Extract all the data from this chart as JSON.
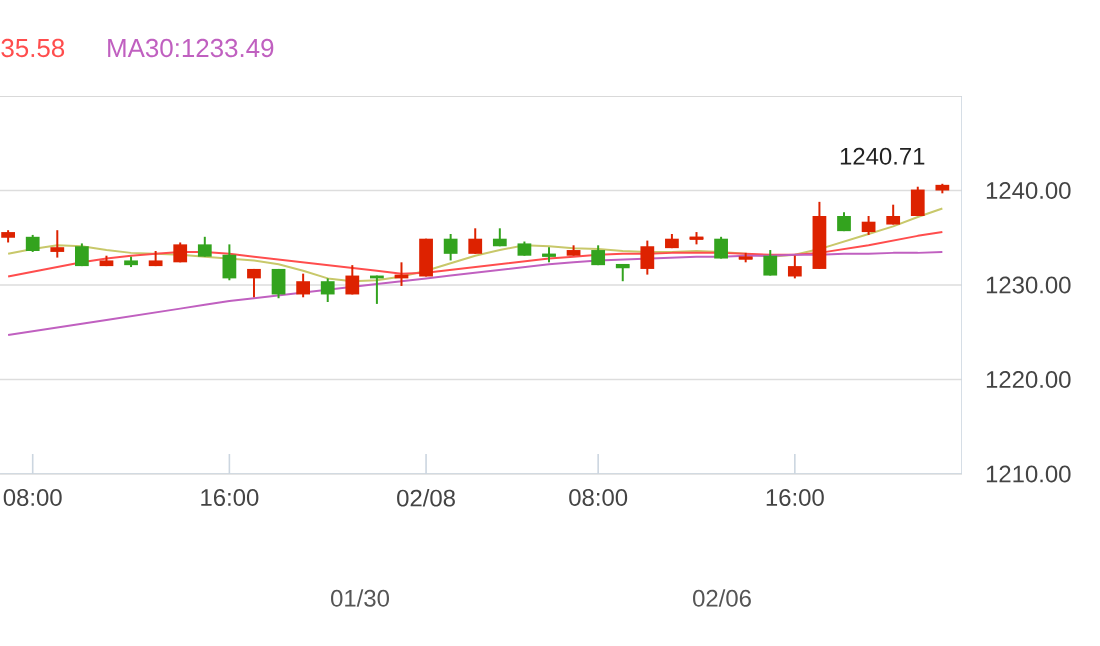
{
  "chart_data": {
    "type": "candlestick",
    "categories": [
      null,
      "08:00",
      null,
      null,
      null,
      null,
      null,
      null,
      null,
      "16:00",
      null,
      null,
      null,
      null,
      null,
      null,
      null,
      "02/08",
      null,
      null,
      null,
      null,
      null,
      null,
      "08:00",
      null,
      null,
      null,
      null,
      null,
      null,
      null,
      "16:00",
      null,
      null,
      null,
      null,
      null,
      null
    ],
    "ohlc": [
      [
        1235.0,
        1235.8,
        1234.5,
        1235.6
      ],
      [
        1235.1,
        1235.3,
        1233.5,
        1233.6
      ],
      [
        1233.5,
        1235.8,
        1232.9,
        1234.0
      ],
      [
        1234.1,
        1234.4,
        1232.0,
        1232.0
      ],
      [
        1232.0,
        1233.1,
        1232.0,
        1232.6
      ],
      [
        1232.6,
        1233.0,
        1231.9,
        1232.1
      ],
      [
        1232.0,
        1233.6,
        1232.0,
        1232.6
      ],
      [
        1232.4,
        1234.5,
        1232.4,
        1234.3
      ],
      [
        1234.3,
        1235.1,
        1233.0,
        1233.0
      ],
      [
        1233.2,
        1234.3,
        1230.5,
        1230.7
      ],
      [
        1230.7,
        1231.7,
        1228.7,
        1231.7
      ],
      [
        1231.7,
        1231.7,
        1228.6,
        1229.0
      ],
      [
        1229.0,
        1231.2,
        1228.7,
        1230.4
      ],
      [
        1230.4,
        1230.7,
        1228.2,
        1229.0
      ],
      [
        1229.0,
        1232.1,
        1229.0,
        1231.0
      ],
      [
        1231.0,
        1231.0,
        1228.0,
        1230.7
      ],
      [
        1230.7,
        1232.4,
        1229.9,
        1231.1
      ],
      [
        1230.9,
        1234.9,
        1230.9,
        1234.9
      ],
      [
        1234.9,
        1235.4,
        1232.6,
        1233.3
      ],
      [
        1233.3,
        1236.0,
        1233.3,
        1234.9
      ],
      [
        1234.9,
        1236.0,
        1234.1,
        1234.1
      ],
      [
        1234.4,
        1234.6,
        1233.1,
        1233.1
      ],
      [
        1233.2,
        1234.0,
        1232.4,
        1233.1
      ],
      [
        1233.1,
        1234.2,
        1233.1,
        1233.7
      ],
      [
        1233.7,
        1234.2,
        1232.1,
        1232.1
      ],
      [
        1232.1,
        1232.1,
        1230.4,
        1231.9
      ],
      [
        1231.7,
        1234.7,
        1231.1,
        1234.1
      ],
      [
        1233.9,
        1235.4,
        1233.9,
        1234.9
      ],
      [
        1234.9,
        1235.6,
        1234.3,
        1235.0
      ],
      [
        1234.9,
        1235.1,
        1232.8,
        1232.8
      ],
      [
        1232.8,
        1233.4,
        1232.4,
        1232.9
      ],
      [
        1233.1,
        1233.7,
        1231.0,
        1231.0
      ],
      [
        1230.9,
        1233.1,
        1230.7,
        1232.0
      ],
      [
        1231.7,
        1238.8,
        1231.7,
        1237.3
      ],
      [
        1237.3,
        1237.7,
        1235.7,
        1235.7
      ],
      [
        1235.6,
        1237.3,
        1235.3,
        1236.7
      ],
      [
        1236.4,
        1238.5,
        1236.4,
        1237.3
      ],
      [
        1237.3,
        1240.4,
        1237.3,
        1240.1
      ],
      [
        1240.0,
        1240.71,
        1239.7,
        1240.6
      ]
    ],
    "colors": [
      "#dd2200",
      "#33a31e",
      "#dd2200",
      "#33a31e",
      "#dd2200",
      "#33a31e",
      "#dd2200",
      "#dd2200",
      "#33a31e",
      "#33a31e",
      "#dd2200",
      "#33a31e",
      "#dd2200",
      "#33a31e",
      "#dd2200",
      "#33a31e",
      "#dd2200",
      "#dd2200",
      "#33a31e",
      "#dd2200",
      "#33a31e",
      "#33a31e",
      "#33a31e",
      "#dd2200",
      "#33a31e",
      "#33a31e",
      "#dd2200",
      "#dd2200",
      "#dd2200",
      "#33a31e",
      "#dd2200",
      "#33a31e",
      "#dd2200",
      "#dd2200",
      "#33a31e",
      "#dd2200",
      "#dd2200",
      "#dd2200",
      "#dd2200"
    ],
    "series": [
      {
        "type": "line",
        "color": "#c8c86a",
        "values": [
          1233.3,
          1233.8,
          1234.2,
          1234.1,
          1233.7,
          1233.4,
          1233.3,
          1233.2,
          1233.0,
          1232.8,
          1232.6,
          1232.2,
          1231.5,
          1230.7,
          1230.4,
          1230.5,
          1230.9,
          1231.5,
          1232.3,
          1233.1,
          1233.7,
          1234.2,
          1234.1,
          1233.9,
          1233.8,
          1233.6,
          1233.5,
          1233.5,
          1233.6,
          1233.5,
          1233.3,
          1233.0,
          1233.2,
          1233.8,
          1234.6,
          1235.4,
          1236.2,
          1237.2,
          1238.1
        ]
      },
      {
        "type": "line",
        "name": "35.58",
        "color": "#ff4d4d",
        "values": [
          1230.9,
          1231.4,
          1231.9,
          1232.4,
          1232.8,
          1233.1,
          1233.3,
          1233.5,
          1233.5,
          1233.3,
          1233.0,
          1232.7,
          1232.4,
          1232.1,
          1231.8,
          1231.5,
          1231.2,
          1231.3,
          1231.6,
          1231.9,
          1232.2,
          1232.5,
          1232.8,
          1233.0,
          1233.2,
          1233.3,
          1233.3,
          1233.4,
          1233.4,
          1233.4,
          1233.3,
          1233.2,
          1233.2,
          1233.4,
          1233.8,
          1234.2,
          1234.7,
          1235.2,
          1235.6
        ]
      },
      {
        "type": "line",
        "name": "MA30:1233.49",
        "color": "#c060c0",
        "values": [
          1224.7,
          1225.1,
          1225.5,
          1225.9,
          1226.3,
          1226.7,
          1227.1,
          1227.5,
          1227.9,
          1228.3,
          1228.6,
          1228.9,
          1229.2,
          1229.5,
          1229.8,
          1230.1,
          1230.4,
          1230.7,
          1231.0,
          1231.3,
          1231.6,
          1231.9,
          1232.2,
          1232.4,
          1232.6,
          1232.7,
          1232.8,
          1232.9,
          1233.0,
          1233.0,
          1233.1,
          1233.1,
          1233.2,
          1233.2,
          1233.3,
          1233.3,
          1233.4,
          1233.4,
          1233.5
        ]
      }
    ],
    "ylim": [
      1210,
      1250
    ],
    "yticks": [
      {
        "value": 1210,
        "label": "1210.00"
      },
      {
        "value": 1220,
        "label": "1220.00"
      },
      {
        "value": 1230,
        "label": "1230.00"
      },
      {
        "value": 1240,
        "label": "1240.00"
      }
    ],
    "grid": "y",
    "legend": "top left",
    "annotations": [
      "1240.71",
      "01/30",
      "02/06"
    ]
  }
}
